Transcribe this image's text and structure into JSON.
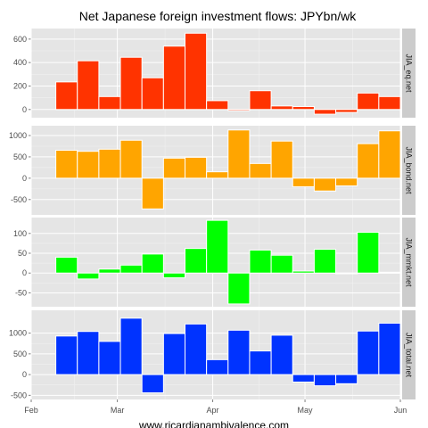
{
  "chart_data": {
    "type": "bar",
    "title": "Net Japanese foreign investment flows: JPYbn/wk",
    "footer": "www.ricardianambivalence.com",
    "x_ticks": [
      "Feb",
      "Mar",
      "Apr",
      "May",
      "Jun"
    ],
    "x_tick_dates": [
      "2013-02-01",
      "2013-03-01",
      "2013-04-01",
      "2013-05-01",
      "2013-06-01"
    ],
    "xlim": [
      "2013-02-01",
      "2013-06-01"
    ],
    "week_starts": [
      "2013-02-09",
      "2013-02-16",
      "2013-02-23",
      "2013-03-02",
      "2013-03-09",
      "2013-03-16",
      "2013-03-23",
      "2013-03-30",
      "2013-04-06",
      "2013-04-13",
      "2013-04-20",
      "2013-04-27",
      "2013-05-04",
      "2013-05-11",
      "2013-05-18",
      "2013-05-25"
    ],
    "panels": [
      {
        "name": "JIA_eq.net",
        "color": "#ff3300",
        "ylim": [
          -70,
          690
        ],
        "y_ticks": [
          0,
          200,
          400,
          600
        ],
        "values": [
          235,
          415,
          110,
          445,
          270,
          540,
          650,
          75,
          -10,
          160,
          30,
          25,
          -40,
          -25,
          140,
          110
        ]
      },
      {
        "name": "JIA_bond.net",
        "color": "#ffa500",
        "ylim": [
          -860,
          1230
        ],
        "y_ticks": [
          -500,
          0,
          500,
          1000
        ],
        "values": [
          655,
          630,
          680,
          890,
          -720,
          470,
          490,
          150,
          1130,
          345,
          870,
          -200,
          -300,
          -180,
          810,
          1110
        ]
      },
      {
        "name": "JIA_mmkt.net",
        "color": "#00ff00",
        "ylim": [
          -85,
          140
        ],
        "y_ticks": [
          -50,
          0,
          50,
          100
        ],
        "values": [
          40,
          -15,
          10,
          20,
          48,
          -12,
          62,
          133,
          -78,
          58,
          45,
          5,
          60,
          -2,
          103,
          2
        ]
      },
      {
        "name": "JIA_total.net",
        "color": "#0033ff",
        "ylim": [
          -600,
          1550
        ],
        "y_ticks": [
          -500,
          0,
          500,
          1000
        ],
        "values": [
          930,
          1040,
          800,
          1360,
          -440,
          990,
          1220,
          360,
          1070,
          570,
          950,
          -180,
          -270,
          -220,
          1050,
          1240
        ]
      }
    ]
  }
}
